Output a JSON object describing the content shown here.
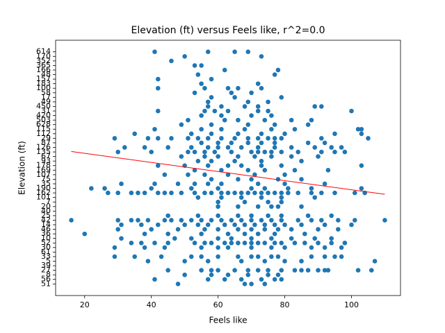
{
  "chart_data": {
    "type": "scatter",
    "title": "Elevation (ft) versus Feels like, r^2=0.0",
    "x_label": "Feels like",
    "y_label": "Elevation (ft)",
    "color": "#1f77b4",
    "xlim": [
      11.3,
      114.7
    ],
    "xticks": [
      20,
      40,
      60,
      80,
      100
    ],
    "ylim": [
      -2.55,
      53.55
    ],
    "yticks": [
      {
        "value": 0,
        "label": "51"
      },
      {
        "value": 1,
        "label": "56"
      },
      {
        "value": 2,
        "label": "8"
      },
      {
        "value": 3,
        "label": "27"
      },
      {
        "value": 4,
        "label": "39"
      },
      {
        "value": 5,
        "label": "5"
      },
      {
        "value": 6,
        "label": "33"
      },
      {
        "value": 7,
        "label": "61"
      },
      {
        "value": 8,
        "label": "30"
      },
      {
        "value": 9,
        "label": "52"
      },
      {
        "value": 10,
        "label": "10"
      },
      {
        "value": 11,
        "label": "36"
      },
      {
        "value": 12,
        "label": "46"
      },
      {
        "value": 13,
        "label": "14"
      },
      {
        "value": 14,
        "label": "42"
      },
      {
        "value": 15,
        "label": "25"
      },
      {
        "value": 16,
        "label": "40"
      },
      {
        "value": 17,
        "label": "20"
      },
      {
        "value": 18,
        "label": "7"
      },
      {
        "value": 19,
        "label": "101"
      },
      {
        "value": 20,
        "label": "162"
      },
      {
        "value": 21,
        "label": "190"
      },
      {
        "value": 22,
        "label": "35"
      },
      {
        "value": 23,
        "label": "75"
      },
      {
        "value": 24,
        "label": "107"
      },
      {
        "value": 25,
        "label": "169"
      },
      {
        "value": 26,
        "label": "178"
      },
      {
        "value": 27,
        "label": "93"
      },
      {
        "value": 28,
        "label": "67"
      },
      {
        "value": 29,
        "label": "135"
      },
      {
        "value": 30,
        "label": "126"
      },
      {
        "value": 31,
        "label": "87"
      },
      {
        "value": 32,
        "label": "29"
      },
      {
        "value": 33,
        "label": "112"
      },
      {
        "value": 34,
        "label": "115"
      },
      {
        "value": 35,
        "label": "628"
      },
      {
        "value": 36,
        "label": "503"
      },
      {
        "value": 37,
        "label": "420"
      },
      {
        "value": 38,
        "label": "31"
      },
      {
        "value": 39,
        "label": "450"
      },
      {
        "value": 40,
        "label": "49"
      },
      {
        "value": 41,
        "label": "17"
      },
      {
        "value": 42,
        "label": "58"
      },
      {
        "value": 43,
        "label": "100"
      },
      {
        "value": 44,
        "label": "183"
      },
      {
        "value": 45,
        "label": "157"
      },
      {
        "value": 46,
        "label": "48"
      },
      {
        "value": 47,
        "label": "166"
      },
      {
        "value": 48,
        "label": "365"
      },
      {
        "value": 49,
        "label": "352"
      },
      {
        "value": 50,
        "label": "170"
      },
      {
        "value": 51,
        "label": "614"
      }
    ],
    "x": [
      48,
      68,
      70,
      74,
      41,
      57,
      62,
      67,
      73,
      77,
      79,
      50,
      58,
      63,
      69,
      75,
      78,
      45,
      55,
      58,
      60,
      65,
      69,
      72,
      75,
      79,
      83,
      85,
      87,
      90,
      92,
      93,
      102,
      106,
      39,
      50,
      57,
      67,
      74,
      80,
      85,
      107,
      29,
      35,
      43,
      52,
      55,
      60,
      66,
      70,
      72,
      76,
      78,
      88,
      92,
      95,
      97,
      29,
      38,
      44,
      55,
      60,
      63,
      70,
      76,
      80,
      88,
      92,
      97,
      34,
      37,
      41,
      45,
      53,
      56,
      58,
      62,
      64,
      66,
      68,
      70,
      72,
      74,
      77,
      79,
      83,
      86,
      90,
      94,
      98,
      31,
      47,
      52,
      60,
      64,
      70,
      76,
      82,
      89,
      94,
      20,
      38,
      45,
      55,
      63,
      68,
      72,
      77,
      86,
      30,
      40,
      48,
      56,
      60,
      66,
      70,
      74,
      78,
      82,
      90,
      96,
      31,
      37,
      42,
      50,
      54,
      57,
      62,
      65,
      68,
      71,
      74,
      77,
      80,
      85,
      92,
      100,
      16,
      30,
      34,
      36,
      39,
      44,
      46,
      49,
      52,
      55,
      58,
      61,
      64,
      67,
      70,
      73,
      76,
      79,
      84,
      88,
      91,
      96,
      101,
      110,
      45,
      54,
      60,
      66,
      70,
      75,
      79,
      87,
      94,
      60,
      66,
      72,
      76,
      78,
      85,
      60,
      68,
      75,
      79,
      54,
      61,
      67,
      73,
      79,
      89,
      27,
      30,
      34,
      36,
      38,
      42,
      44,
      46,
      49,
      53,
      56,
      58,
      61,
      63,
      65,
      67,
      69,
      71,
      73,
      75,
      77,
      79,
      81,
      84,
      88,
      91,
      95,
      101,
      104,
      22,
      26,
      40,
      52,
      60,
      70,
      74,
      81,
      88,
      103,
      31,
      41,
      48,
      53,
      57,
      61,
      72,
      80,
      92,
      58,
      66,
      70,
      78,
      85,
      44,
      51,
      56,
      63,
      71,
      80,
      53,
      61,
      69,
      74,
      83,
      93,
      42,
      50,
      57,
      63,
      67,
      73,
      79,
      103,
      54,
      58,
      65,
      73,
      85,
      49,
      56,
      60,
      66,
      71,
      76,
      82,
      90,
      30,
      40,
      51,
      53,
      56,
      59,
      64,
      70,
      72,
      74,
      76,
      79,
      84,
      91,
      95,
      98,
      32,
      38,
      45,
      52,
      57,
      60,
      63,
      67,
      72,
      77,
      82,
      89,
      94,
      97,
      55,
      60,
      64,
      69,
      73,
      77,
      87,
      92,
      29,
      39,
      42,
      46,
      51,
      54,
      57,
      61,
      65,
      69,
      72,
      75,
      77,
      79,
      91,
      105,
      35,
      52,
      58,
      66,
      73,
      80,
      95,
      103,
      41,
      55,
      61,
      68,
      76,
      83,
      102,
      103,
      49,
      58,
      69,
      77,
      87,
      51,
      62,
      66,
      74,
      82,
      88,
      55,
      61,
      70,
      76,
      42,
      56,
      59,
      63,
      72,
      75,
      100,
      57,
      61,
      68,
      72,
      89,
      91,
      57,
      69,
      75,
      58,
      65,
      79,
      53,
      64,
      70,
      42,
      56,
      63,
      66,
      73,
      55,
      72,
      42,
      58,
      54,
      77,
      62,
      78,
      53,
      55,
      46,
      50,
      73,
      41,
      57,
      65,
      69
    ],
    "values": [
      0,
      0,
      0,
      0,
      1,
      1,
      1,
      1,
      1,
      1,
      1,
      2,
      2,
      2,
      2,
      2,
      2,
      3,
      3,
      3,
      3,
      3,
      3,
      3,
      3,
      3,
      3,
      3,
      3,
      3,
      3,
      3,
      3,
      3,
      5,
      5,
      5,
      5,
      5,
      5,
      5,
      5,
      6,
      6,
      6,
      6,
      6,
      6,
      6,
      6,
      6,
      6,
      6,
      6,
      6,
      6,
      6,
      8,
      8,
      8,
      8,
      8,
      8,
      8,
      8,
      8,
      8,
      8,
      8,
      9,
      9,
      9,
      9,
      9,
      9,
      9,
      9,
      9,
      9,
      9,
      9,
      9,
      9,
      9,
      9,
      9,
      9,
      9,
      9,
      9,
      10,
      10,
      10,
      10,
      10,
      10,
      10,
      10,
      10,
      10,
      11,
      11,
      11,
      11,
      11,
      11,
      11,
      11,
      11,
      12,
      12,
      12,
      12,
      12,
      12,
      12,
      12,
      12,
      12,
      12,
      12,
      13,
      13,
      13,
      13,
      13,
      13,
      13,
      13,
      13,
      13,
      13,
      13,
      13,
      13,
      13,
      13,
      14,
      14,
      14,
      14,
      14,
      14,
      14,
      14,
      14,
      14,
      14,
      14,
      14,
      14,
      14,
      14,
      14,
      14,
      14,
      14,
      14,
      14,
      14,
      14,
      15,
      15,
      15,
      15,
      15,
      15,
      15,
      15,
      15,
      17,
      17,
      17,
      17,
      17,
      17,
      18,
      18,
      18,
      18,
      19,
      19,
      19,
      19,
      19,
      19,
      20,
      20,
      20,
      20,
      20,
      20,
      20,
      20,
      20,
      20,
      20,
      20,
      20,
      20,
      20,
      20,
      20,
      20,
      20,
      20,
      20,
      20,
      20,
      20,
      20,
      20,
      20,
      20,
      20,
      21,
      21,
      21,
      21,
      21,
      21,
      21,
      21,
      21,
      21,
      22,
      22,
      22,
      22,
      22,
      22,
      22,
      22,
      22,
      23,
      23,
      23,
      23,
      23,
      24,
      24,
      24,
      24,
      24,
      24,
      25,
      25,
      25,
      25,
      25,
      25,
      26,
      26,
      26,
      26,
      26,
      26,
      26,
      26,
      27,
      27,
      27,
      27,
      27,
      28,
      28,
      28,
      28,
      28,
      28,
      28,
      28,
      29,
      29,
      29,
      29,
      29,
      29,
      29,
      29,
      29,
      29,
      29,
      29,
      29,
      29,
      29,
      29,
      30,
      30,
      30,
      30,
      30,
      30,
      30,
      30,
      30,
      30,
      30,
      30,
      30,
      30,
      31,
      31,
      31,
      31,
      31,
      31,
      31,
      31,
      32,
      32,
      32,
      32,
      32,
      32,
      32,
      32,
      32,
      32,
      32,
      32,
      32,
      32,
      32,
      32,
      33,
      33,
      33,
      33,
      33,
      33,
      33,
      33,
      34,
      34,
      34,
      34,
      34,
      34,
      34,
      34,
      35,
      35,
      35,
      35,
      35,
      36,
      36,
      36,
      36,
      36,
      36,
      37,
      37,
      37,
      37,
      38,
      38,
      38,
      38,
      38,
      38,
      38,
      39,
      39,
      39,
      39,
      39,
      39,
      40,
      40,
      40,
      41,
      41,
      41,
      42,
      42,
      42,
      43,
      43,
      43,
      43,
      43,
      44,
      44,
      45,
      45,
      46,
      46,
      47,
      47,
      48,
      48,
      49,
      50,
      50,
      51,
      51,
      51,
      51
    ],
    "fit_line": {
      "x": [
        16,
        110
      ],
      "values": [
        29.1,
        19.7
      ],
      "color": "#ff0000"
    }
  }
}
